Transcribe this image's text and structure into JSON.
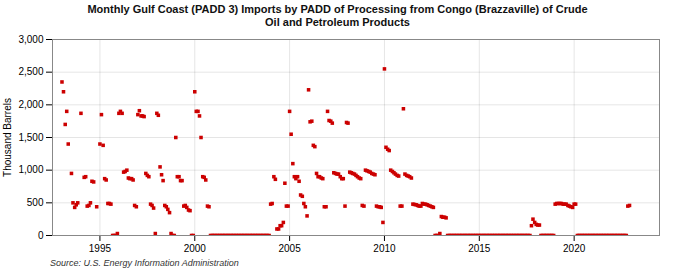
{
  "chart_data": {
    "type": "scatter",
    "title": "Monthly Gulf Coast (PADD 3) Imports by PADD of Processing from Congo (Brazzaville) of Crude\nOil and Petroleum Products",
    "ylabel": "Thousand Barrels",
    "source": "Source: U.S. Energy Information Administration",
    "color": "#cc0000",
    "marker": "square",
    "grid": true,
    "xlim": [
      1992.5,
      2024.5
    ],
    "ylim": [
      0,
      3000
    ],
    "xticks": [
      1995,
      2000,
      2005,
      2010,
      2015,
      2020
    ],
    "yticks": [
      0,
      500,
      {
        "value": 1000,
        "label": "1,000"
      },
      {
        "value": 1500,
        "label": "1,500"
      },
      {
        "value": 2000,
        "label": "2,000"
      },
      {
        "value": 2500,
        "label": "2,500"
      },
      {
        "value": 3000,
        "label": "3,000"
      }
    ],
    "x": [
      1993.0,
      1993.08,
      1993.17,
      1993.25,
      1993.33,
      1993.5,
      1993.58,
      1993.67,
      1993.75,
      1993.83,
      1994.0,
      1994.17,
      1994.25,
      1994.33,
      1994.42,
      1994.5,
      1994.58,
      1994.67,
      1994.83,
      1995.0,
      1995.08,
      1995.17,
      1995.25,
      1995.33,
      1995.42,
      1995.5,
      1995.58,
      1995.67,
      1995.75,
      1995.83,
      1995.92,
      1996.0,
      1996.08,
      1996.17,
      1996.25,
      1996.33,
      1996.42,
      1996.5,
      1996.58,
      1996.67,
      1996.75,
      1996.83,
      1996.92,
      1997.0,
      1997.08,
      1997.17,
      1997.25,
      1997.33,
      1997.42,
      1997.5,
      1997.58,
      1997.67,
      1997.75,
      1997.83,
      1997.92,
      1998.0,
      1998.08,
      1998.17,
      1998.25,
      1998.33,
      1998.42,
      1998.5,
      1998.58,
      1998.67,
      1998.75,
      1998.83,
      1998.92,
      1999.0,
      1999.08,
      1999.17,
      1999.25,
      1999.33,
      1999.42,
      1999.5,
      1999.58,
      1999.67,
      1999.75,
      1999.83,
      1999.92,
      2000.0,
      2000.08,
      2000.17,
      2000.25,
      2000.33,
      2000.42,
      2000.5,
      2000.58,
      2000.67,
      2000.75,
      2000.83,
      2000.92,
      2001.0,
      2001.08,
      2001.17,
      2001.25,
      2001.33,
      2001.42,
      2001.5,
      2001.58,
      2001.67,
      2001.75,
      2001.83,
      2001.92,
      2002.0,
      2002.08,
      2002.17,
      2002.25,
      2002.33,
      2002.42,
      2002.5,
      2002.58,
      2002.67,
      2002.75,
      2002.83,
      2002.92,
      2003.0,
      2003.08,
      2003.17,
      2003.25,
      2003.33,
      2003.42,
      2003.5,
      2003.58,
      2003.67,
      2003.75,
      2003.83,
      2003.92,
      2004.0,
      2004.08,
      2004.17,
      2004.25,
      2004.33,
      2004.42,
      2004.5,
      2004.58,
      2004.67,
      2004.75,
      2004.83,
      2004.92,
      2005.0,
      2005.08,
      2005.17,
      2005.25,
      2005.33,
      2005.42,
      2005.5,
      2005.58,
      2005.67,
      2005.75,
      2005.83,
      2005.92,
      2006.0,
      2006.08,
      2006.17,
      2006.25,
      2006.33,
      2006.42,
      2006.5,
      2006.58,
      2006.67,
      2006.75,
      2006.83,
      2006.92,
      2007.0,
      2007.08,
      2007.17,
      2007.25,
      2007.33,
      2007.42,
      2007.5,
      2007.58,
      2007.67,
      2007.75,
      2007.83,
      2007.92,
      2008.0,
      2008.08,
      2008.17,
      2008.25,
      2008.33,
      2008.42,
      2008.5,
      2008.58,
      2008.67,
      2008.75,
      2008.83,
      2008.92,
      2009.0,
      2009.08,
      2009.17,
      2009.25,
      2009.33,
      2009.42,
      2009.5,
      2009.58,
      2009.67,
      2009.75,
      2009.83,
      2009.92,
      2010.0,
      2010.08,
      2010.17,
      2010.25,
      2010.33,
      2010.42,
      2010.5,
      2010.58,
      2010.67,
      2010.75,
      2010.83,
      2010.92,
      2011.0,
      2011.08,
      2011.17,
      2011.25,
      2011.33,
      2011.42,
      2011.5,
      2011.58,
      2011.67,
      2011.75,
      2011.83,
      2011.92,
      2012.0,
      2012.08,
      2012.17,
      2012.25,
      2012.33,
      2012.42,
      2012.5,
      2012.58,
      2012.67,
      2012.75,
      2012.83,
      2012.92,
      2013.0,
      2013.08,
      2013.17,
      2013.25,
      2013.33,
      2013.42,
      2013.5,
      2013.58,
      2013.67,
      2013.75,
      2013.83,
      2013.92,
      2014.0,
      2014.08,
      2014.17,
      2014.25,
      2014.33,
      2014.42,
      2014.5,
      2014.58,
      2014.67,
      2014.75,
      2014.83,
      2014.92,
      2015.0,
      2015.08,
      2015.17,
      2015.25,
      2015.33,
      2015.42,
      2015.5,
      2015.58,
      2015.67,
      2015.75,
      2015.83,
      2015.92,
      2016.0,
      2016.08,
      2016.17,
      2016.25,
      2016.33,
      2016.42,
      2016.5,
      2016.58,
      2016.67,
      2016.75,
      2016.83,
      2016.92,
      2017.0,
      2017.08,
      2017.17,
      2017.25,
      2017.33,
      2017.42,
      2017.5,
      2017.58,
      2017.67,
      2017.75,
      2017.83,
      2017.92,
      2018.0,
      2018.08,
      2018.17,
      2018.25,
      2018.33,
      2018.42,
      2018.5,
      2018.58,
      2018.67,
      2018.75,
      2018.83,
      2018.92,
      2019.0,
      2019.08,
      2019.17,
      2019.25,
      2019.33,
      2019.42,
      2019.5,
      2019.58,
      2019.67,
      2019.75,
      2019.83,
      2019.92,
      2020.0,
      2020.08,
      2020.17,
      2020.25,
      2020.33,
      2020.42,
      2020.5,
      2020.58,
      2020.67,
      2020.75,
      2020.83,
      2020.92,
      2021.0,
      2021.08,
      2021.17,
      2021.25,
      2021.33,
      2021.42,
      2021.5,
      2021.58,
      2021.67,
      2021.75,
      2021.83,
      2021.92,
      2022.0,
      2022.08,
      2022.17,
      2022.25,
      2022.33,
      2022.42,
      2022.5,
      2022.58,
      2022.67,
      2022.75,
      2022.83,
      2022.92
    ],
    "values": [
      2350,
      2200,
      1700,
      1900,
      1400,
      950,
      500,
      430,
      470,
      500,
      1870,
      890,
      900,
      450,
      460,
      500,
      830,
      820,
      440,
      1400,
      1850,
      1380,
      870,
      850,
      490,
      490,
      480,
      0,
      0,
      0,
      30,
      1870,
      1900,
      1870,
      970,
      980,
      1000,
      880,
      870,
      870,
      850,
      460,
      440,
      1850,
      1910,
      1830,
      1830,
      1820,
      950,
      920,
      900,
      480,
      460,
      420,
      30,
      1870,
      1840,
      1050,
      930,
      840,
      460,
      440,
      400,
      350,
      30,
      0,
      0,
      1500,
      900,
      900,
      840,
      840,
      450,
      460,
      430,
      390,
      380,
      0,
      0,
      2200,
      1900,
      1900,
      1830,
      1500,
      900,
      890,
      850,
      450,
      440,
      0,
      0,
      0,
      0,
      0,
      0,
      0,
      0,
      0,
      0,
      0,
      0,
      0,
      0,
      0,
      0,
      0,
      0,
      0,
      0,
      0,
      0,
      0,
      0,
      0,
      0,
      0,
      0,
      0,
      0,
      0,
      0,
      0,
      0,
      0,
      0,
      0,
      0,
      480,
      490,
      900,
      860,
      100,
      100,
      150,
      150,
      200,
      800,
      450,
      450,
      1900,
      1550,
      1100,
      900,
      870,
      900,
      830,
      620,
      600,
      490,
      440,
      300,
      2230,
      1740,
      1750,
      1380,
      1360,
      950,
      900,
      900,
      880,
      870,
      440,
      440,
      1900,
      1760,
      1750,
      1720,
      960,
      950,
      940,
      940,
      900,
      870,
      870,
      450,
      1730,
      1720,
      970,
      960,
      950,
      940,
      920,
      900,
      880,
      870,
      460,
      450,
      1000,
      990,
      980,
      970,
      950,
      940,
      930,
      450,
      440,
      440,
      430,
      200,
      2550,
      1350,
      1320,
      1300,
      1000,
      980,
      960,
      940,
      920,
      910,
      450,
      450,
      1940,
      940,
      920,
      910,
      900,
      880,
      480,
      475,
      470,
      460,
      450,
      450,
      490,
      480,
      480,
      470,
      460,
      450,
      440,
      430,
      0,
      0,
      0,
      30,
      290,
      280,
      280,
      270,
      0,
      0,
      0,
      0,
      0,
      0,
      0,
      0,
      0,
      0,
      0,
      0,
      0,
      0,
      0,
      0,
      0,
      0,
      0,
      0,
      0,
      0,
      0,
      0,
      0,
      0,
      0,
      0,
      0,
      0,
      0,
      0,
      0,
      0,
      0,
      0,
      0,
      0,
      0,
      0,
      0,
      0,
      0,
      0,
      0,
      0,
      0,
      0,
      0,
      0,
      0,
      0,
      0,
      150,
      250,
      200,
      170,
      160,
      160,
      0,
      0,
      0,
      0,
      0,
      0,
      0,
      0,
      0,
      480,
      490,
      490,
      490,
      490,
      480,
      480,
      480,
      460,
      450,
      440,
      430,
      480,
      480,
      0,
      0,
      0,
      0,
      0,
      0,
      0,
      0,
      0,
      0,
      0,
      0,
      0,
      0,
      0,
      0,
      0,
      0,
      0,
      0,
      0,
      0,
      0,
      0,
      0,
      0,
      0,
      0,
      0,
      0,
      0,
      0,
      450,
      460
    ]
  }
}
